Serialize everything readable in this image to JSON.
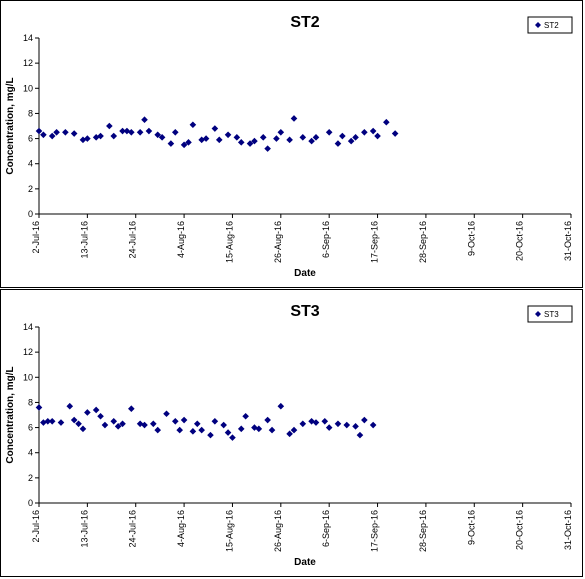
{
  "chart_data": [
    {
      "type": "scatter",
      "title": "ST2",
      "xlabel": "Date",
      "ylabel": "Concentration, mg/L",
      "ylim": [
        0,
        14
      ],
      "yticks": [
        0,
        2,
        4,
        6,
        8,
        10,
        12,
        14
      ],
      "xlim": [
        "2016-07-02",
        "2016-10-31"
      ],
      "xtick_labels": [
        "2-Jul-16",
        "13-Jul-16",
        "24-Jul-16",
        "4-Aug-16",
        "15-Aug-16",
        "26-Aug-16",
        "6-Sep-16",
        "17-Sep-16",
        "28-Sep-16",
        "9-Oct-16",
        "20-Oct-16",
        "31-Oct-16"
      ],
      "grid": false,
      "legend_position": "top-right",
      "series": [
        {
          "name": "ST2",
          "color": "#00007f",
          "marker": "diamond",
          "points": [
            [
              "2016-07-02",
              6.6
            ],
            [
              "2016-07-03",
              6.3
            ],
            [
              "2016-07-05",
              6.2
            ],
            [
              "2016-07-06",
              6.5
            ],
            [
              "2016-07-08",
              6.5
            ],
            [
              "2016-07-10",
              6.4
            ],
            [
              "2016-07-12",
              5.9
            ],
            [
              "2016-07-13",
              6.0
            ],
            [
              "2016-07-15",
              6.1
            ],
            [
              "2016-07-16",
              6.2
            ],
            [
              "2016-07-18",
              7.0
            ],
            [
              "2016-07-19",
              6.2
            ],
            [
              "2016-07-21",
              6.6
            ],
            [
              "2016-07-22",
              6.6
            ],
            [
              "2016-07-23",
              6.5
            ],
            [
              "2016-07-25",
              6.5
            ],
            [
              "2016-07-26",
              7.5
            ],
            [
              "2016-07-27",
              6.6
            ],
            [
              "2016-07-29",
              6.3
            ],
            [
              "2016-07-30",
              6.1
            ],
            [
              "2016-08-01",
              5.6
            ],
            [
              "2016-08-02",
              6.5
            ],
            [
              "2016-08-04",
              5.5
            ],
            [
              "2016-08-05",
              5.7
            ],
            [
              "2016-08-06",
              7.1
            ],
            [
              "2016-08-08",
              5.9
            ],
            [
              "2016-08-09",
              6.0
            ],
            [
              "2016-08-11",
              6.8
            ],
            [
              "2016-08-12",
              5.9
            ],
            [
              "2016-08-14",
              6.3
            ],
            [
              "2016-08-16",
              6.1
            ],
            [
              "2016-08-17",
              5.7
            ],
            [
              "2016-08-19",
              5.6
            ],
            [
              "2016-08-20",
              5.8
            ],
            [
              "2016-08-22",
              6.1
            ],
            [
              "2016-08-23",
              5.2
            ],
            [
              "2016-08-25",
              6.0
            ],
            [
              "2016-08-26",
              6.5
            ],
            [
              "2016-08-28",
              5.9
            ],
            [
              "2016-08-29",
              7.6
            ],
            [
              "2016-08-31",
              6.1
            ],
            [
              "2016-09-02",
              5.8
            ],
            [
              "2016-09-03",
              6.1
            ],
            [
              "2016-09-06",
              6.5
            ],
            [
              "2016-09-08",
              5.6
            ],
            [
              "2016-09-09",
              6.2
            ],
            [
              "2016-09-11",
              5.8
            ],
            [
              "2016-09-12",
              6.1
            ],
            [
              "2016-09-14",
              6.5
            ],
            [
              "2016-09-16",
              6.6
            ],
            [
              "2016-09-17",
              6.2
            ],
            [
              "2016-09-19",
              7.3
            ],
            [
              "2016-09-21",
              6.4
            ]
          ]
        }
      ]
    },
    {
      "type": "scatter",
      "title": "ST3",
      "xlabel": "Date",
      "ylabel": "Concentration, mg/L",
      "ylim": [
        0,
        14
      ],
      "yticks": [
        0,
        2,
        4,
        6,
        8,
        10,
        12,
        14
      ],
      "xlim": [
        "2016-07-02",
        "2016-10-31"
      ],
      "xtick_labels": [
        "2-Jul-16",
        "13-Jul-16",
        "24-Jul-16",
        "4-Aug-16",
        "15-Aug-16",
        "26-Aug-16",
        "6-Sep-16",
        "17-Sep-16",
        "28-Sep-16",
        "9-Oct-16",
        "20-Oct-16",
        "31-Oct-16"
      ],
      "grid": false,
      "legend_position": "top-right",
      "series": [
        {
          "name": "ST3",
          "color": "#00007f",
          "marker": "diamond",
          "points": [
            [
              "2016-07-02",
              7.6
            ],
            [
              "2016-07-03",
              6.4
            ],
            [
              "2016-07-04",
              6.5
            ],
            [
              "2016-07-05",
              6.5
            ],
            [
              "2016-07-07",
              6.4
            ],
            [
              "2016-07-09",
              7.7
            ],
            [
              "2016-07-10",
              6.6
            ],
            [
              "2016-07-11",
              6.3
            ],
            [
              "2016-07-12",
              5.9
            ],
            [
              "2016-07-13",
              7.2
            ],
            [
              "2016-07-15",
              7.4
            ],
            [
              "2016-07-16",
              6.9
            ],
            [
              "2016-07-17",
              6.2
            ],
            [
              "2016-07-19",
              6.5
            ],
            [
              "2016-07-20",
              6.1
            ],
            [
              "2016-07-21",
              6.3
            ],
            [
              "2016-07-23",
              7.5
            ],
            [
              "2016-07-25",
              6.3
            ],
            [
              "2016-07-26",
              6.2
            ],
            [
              "2016-07-28",
              6.3
            ],
            [
              "2016-07-29",
              5.8
            ],
            [
              "2016-07-31",
              7.1
            ],
            [
              "2016-08-02",
              6.5
            ],
            [
              "2016-08-03",
              5.8
            ],
            [
              "2016-08-04",
              6.6
            ],
            [
              "2016-08-06",
              5.7
            ],
            [
              "2016-08-07",
              6.3
            ],
            [
              "2016-08-08",
              5.8
            ],
            [
              "2016-08-10",
              5.4
            ],
            [
              "2016-08-11",
              6.5
            ],
            [
              "2016-08-13",
              6.2
            ],
            [
              "2016-08-14",
              5.6
            ],
            [
              "2016-08-15",
              5.2
            ],
            [
              "2016-08-17",
              5.9
            ],
            [
              "2016-08-18",
              6.9
            ],
            [
              "2016-08-20",
              6.0
            ],
            [
              "2016-08-21",
              5.9
            ],
            [
              "2016-08-23",
              6.6
            ],
            [
              "2016-08-24",
              5.8
            ],
            [
              "2016-08-26",
              7.7
            ],
            [
              "2016-08-28",
              5.5
            ],
            [
              "2016-08-29",
              5.8
            ],
            [
              "2016-08-31",
              6.3
            ],
            [
              "2016-09-02",
              6.5
            ],
            [
              "2016-09-03",
              6.4
            ],
            [
              "2016-09-05",
              6.5
            ],
            [
              "2016-09-06",
              6.0
            ],
            [
              "2016-09-08",
              6.3
            ],
            [
              "2016-09-10",
              6.2
            ],
            [
              "2016-09-12",
              6.1
            ],
            [
              "2016-09-13",
              5.4
            ],
            [
              "2016-09-14",
              6.6
            ],
            [
              "2016-09-16",
              6.2
            ]
          ]
        }
      ]
    }
  ]
}
